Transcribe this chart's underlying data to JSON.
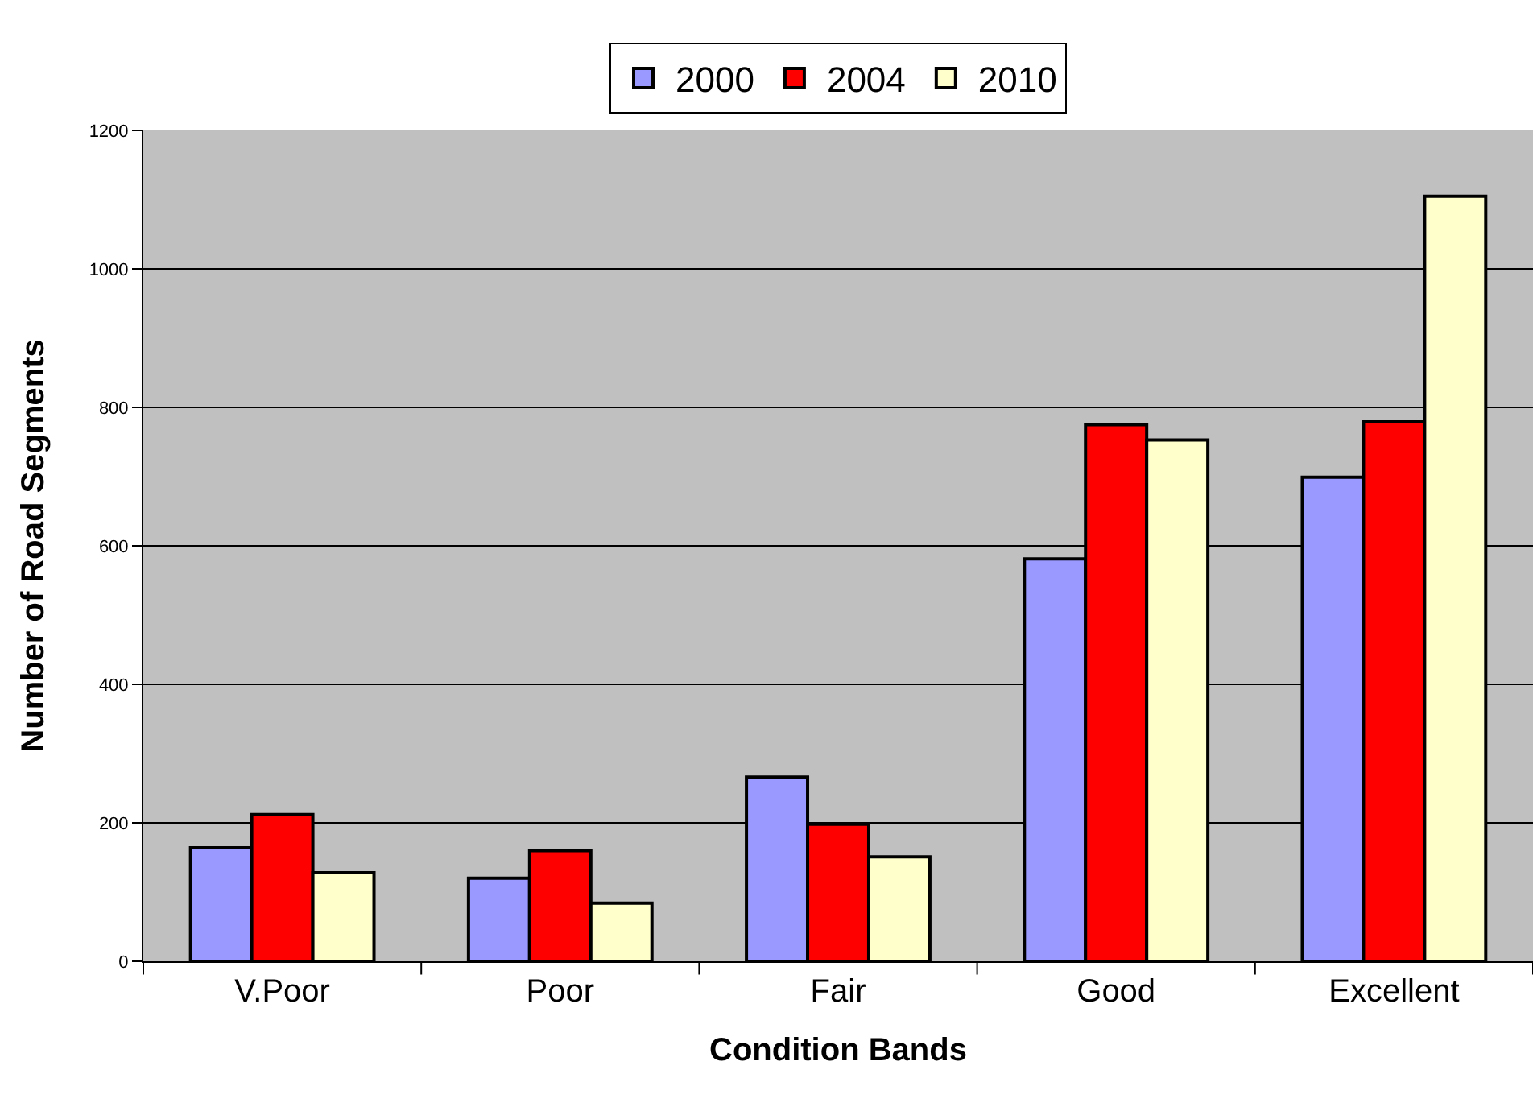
{
  "chart_data": {
    "type": "bar",
    "xlabel": "Condition Bands",
    "ylabel": "Number of Road Segments",
    "categories": [
      "V.Poor",
      "Poor",
      "Fair",
      "Good",
      "Excellent"
    ],
    "series": [
      {
        "name": "2000",
        "color": "#9999ff",
        "values": [
          164,
          120,
          266,
          581,
          699
        ]
      },
      {
        "name": "2004",
        "color": "#ff0000",
        "values": [
          212,
          160,
          198,
          775,
          779
        ]
      },
      {
        "name": "2010",
        "color": "#ffffcc",
        "values": [
          128,
          84,
          151,
          753,
          1105
        ]
      }
    ],
    "ylim": [
      0,
      1200
    ],
    "yticks": [
      0,
      200,
      400,
      600,
      800,
      1000,
      1200
    ],
    "grid": "y",
    "legend": "top"
  }
}
